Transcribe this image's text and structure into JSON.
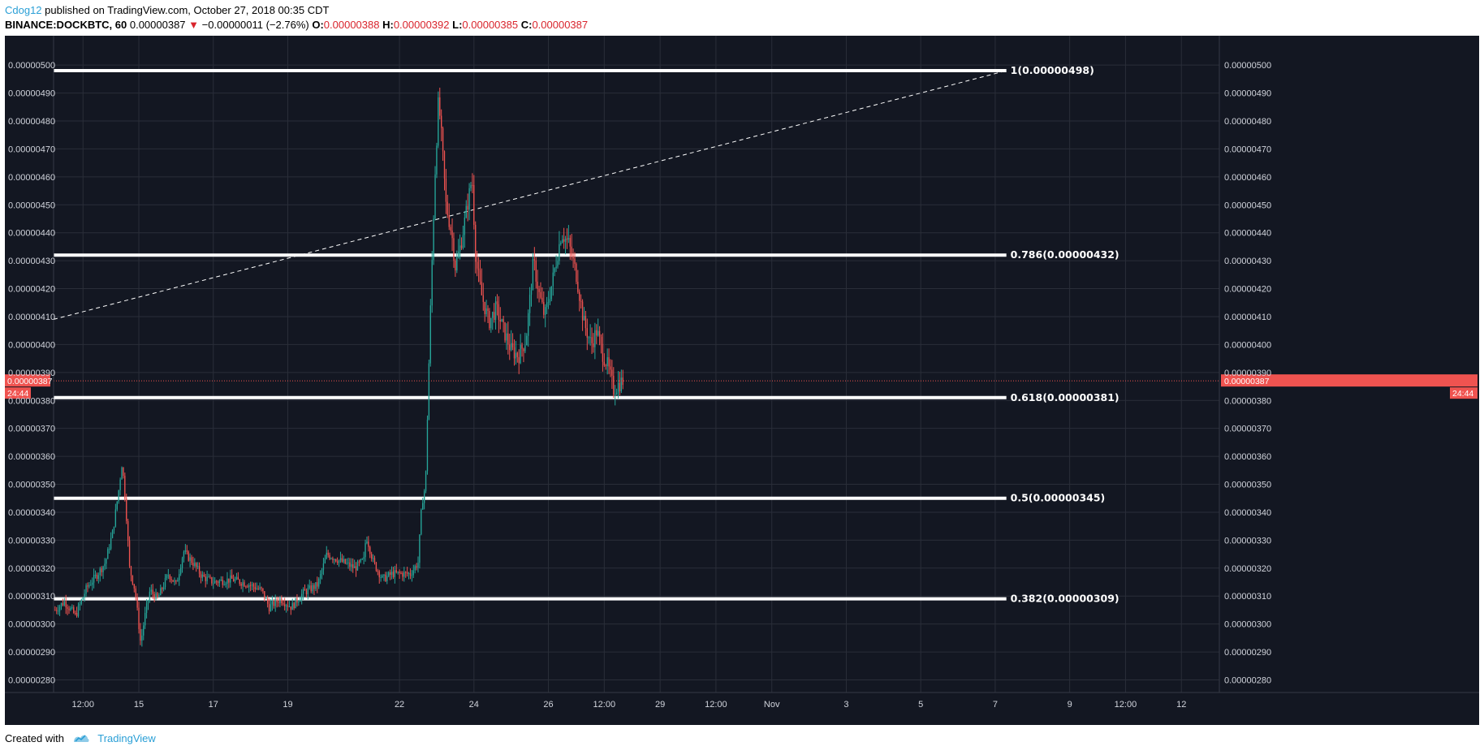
{
  "header": {
    "author": "Cdog12",
    "published_text": "published on TradingView.com, October 27, 2018 00:35 CDT",
    "symbol": "BINANCE:DOCKBTC, 60",
    "last": "0.00000387",
    "change": "−0.00000011 (−2.76%)",
    "o_label": "O:",
    "o_value": "0.00000388",
    "h_label": "H:",
    "h_value": "0.00000392",
    "l_label": "L:",
    "l_value": "0.00000385",
    "c_label": "C:",
    "c_value": "0.00000387"
  },
  "footer": {
    "created_with": "Created with",
    "brand": "TradingView"
  },
  "colors": {
    "background": "#131722",
    "grid": "#2a2e39",
    "up": "#26a69a",
    "down": "#ef5350",
    "level_line": "#ffffff",
    "price_tag": "#ef5350"
  },
  "chart_data": {
    "type": "candlestick",
    "price_axis_ticks": [
      "0.00000280",
      "0.00000290",
      "0.00000300",
      "0.00000310",
      "0.00000320",
      "0.00000330",
      "0.00000340",
      "0.00000350",
      "0.00000360",
      "0.00000370",
      "0.00000380",
      "0.00000390",
      "0.00000400",
      "0.00000410",
      "0.00000420",
      "0.00000430",
      "0.00000440",
      "0.00000450",
      "0.00000460",
      "0.00000470",
      "0.00000480",
      "0.00000490",
      "0.00000500"
    ],
    "price_values": [
      280,
      290,
      300,
      310,
      320,
      330,
      340,
      350,
      360,
      370,
      380,
      390,
      400,
      410,
      420,
      430,
      440,
      450,
      460,
      470,
      480,
      490,
      500
    ],
    "ylim": [
      275.5,
      510.5
    ],
    "time_axis": [
      {
        "label": "12:00",
        "day": 13.5
      },
      {
        "label": "15",
        "day": 15
      },
      {
        "label": "17",
        "day": 17
      },
      {
        "label": "19",
        "day": 19
      },
      {
        "label": "22",
        "day": 22
      },
      {
        "label": "24",
        "day": 24
      },
      {
        "label": "26",
        "day": 26
      },
      {
        "label": "12:00",
        "day": 27.5
      },
      {
        "label": "29",
        "day": 29
      },
      {
        "label": "12:00",
        "day": 30.5
      },
      {
        "label": "Nov",
        "day": 32
      },
      {
        "label": "3",
        "day": 34
      },
      {
        "label": "5",
        "day": 36
      },
      {
        "label": "7",
        "day": 38
      },
      {
        "label": "9",
        "day": 40
      },
      {
        "label": "12:00",
        "day": 41.5
      },
      {
        "label": "12",
        "day": 43
      }
    ],
    "xlim": [
      12.71,
      44.02
    ],
    "current_price": {
      "value": 387,
      "label": "0.00000387",
      "countdown": "24:44"
    },
    "fib_levels": [
      {
        "ratio": 1,
        "value": 498,
        "label": "1(0.00000498)"
      },
      {
        "ratio": 0.786,
        "value": 432,
        "label": "0.786(0.00000432)"
      },
      {
        "ratio": 0.618,
        "value": 381,
        "label": "0.618(0.00000381)"
      },
      {
        "ratio": 0.5,
        "value": 345,
        "label": "0.5(0.00000345)"
      },
      {
        "ratio": 0.382,
        "value": 309,
        "label": "0.382(0.00000309)"
      }
    ],
    "fib_start_day": 12.71,
    "fib_end_day": 38.3,
    "trendline": {
      "from": {
        "day": 12.71,
        "value": 409
      },
      "to": {
        "day": 38.3,
        "value": 498
      }
    },
    "price_path_points": [
      [
        12.75,
        305
      ],
      [
        13.0,
        308
      ],
      [
        13.3,
        303
      ],
      [
        13.6,
        313
      ],
      [
        13.9,
        318
      ],
      [
        14.1,
        322
      ],
      [
        14.3,
        333
      ],
      [
        14.45,
        347
      ],
      [
        14.55,
        358
      ],
      [
        14.65,
        342
      ],
      [
        14.75,
        320
      ],
      [
        14.9,
        312
      ],
      [
        15.05,
        293
      ],
      [
        15.15,
        302
      ],
      [
        15.3,
        312
      ],
      [
        15.5,
        309
      ],
      [
        15.8,
        318
      ],
      [
        16.0,
        314
      ],
      [
        16.2,
        326
      ],
      [
        16.45,
        322
      ],
      [
        16.7,
        317
      ],
      [
        17.0,
        315
      ],
      [
        17.5,
        316
      ],
      [
        18.0,
        314
      ],
      [
        18.3,
        312
      ],
      [
        18.5,
        306
      ],
      [
        18.8,
        309
      ],
      [
        19.1,
        306
      ],
      [
        19.4,
        311
      ],
      [
        19.8,
        314
      ],
      [
        20.05,
        325
      ],
      [
        20.5,
        322
      ],
      [
        20.8,
        320
      ],
      [
        21.05,
        323
      ],
      [
        21.1,
        332
      ],
      [
        21.3,
        322
      ],
      [
        21.55,
        316
      ],
      [
        21.8,
        318
      ],
      [
        22.0,
        318
      ],
      [
        22.3,
        318
      ],
      [
        22.5,
        322
      ],
      [
        22.6,
        343
      ],
      [
        22.7,
        350
      ],
      [
        22.78,
        388
      ],
      [
        22.85,
        420
      ],
      [
        22.95,
        460
      ],
      [
        23.05,
        488
      ],
      [
        23.15,
        470
      ],
      [
        23.25,
        450
      ],
      [
        23.4,
        440
      ],
      [
        23.5,
        428
      ],
      [
        23.65,
        436
      ],
      [
        23.8,
        448
      ],
      [
        23.95,
        460
      ],
      [
        24.05,
        430
      ],
      [
        24.2,
        418
      ],
      [
        24.4,
        408
      ],
      [
        24.6,
        413
      ],
      [
        24.8,
        405
      ],
      [
        25.0,
        398
      ],
      [
        25.2,
        396
      ],
      [
        25.4,
        402
      ],
      [
        25.6,
        430
      ],
      [
        25.75,
        418
      ],
      [
        25.9,
        410
      ],
      [
        26.1,
        422
      ],
      [
        26.35,
        440
      ],
      [
        26.55,
        436
      ],
      [
        26.75,
        425
      ],
      [
        26.95,
        408
      ],
      [
        27.15,
        400
      ],
      [
        27.3,
        405
      ],
      [
        27.45,
        397
      ],
      [
        27.6,
        392
      ],
      [
        27.75,
        384
      ],
      [
        27.9,
        386
      ],
      [
        28.0,
        387
      ]
    ]
  }
}
